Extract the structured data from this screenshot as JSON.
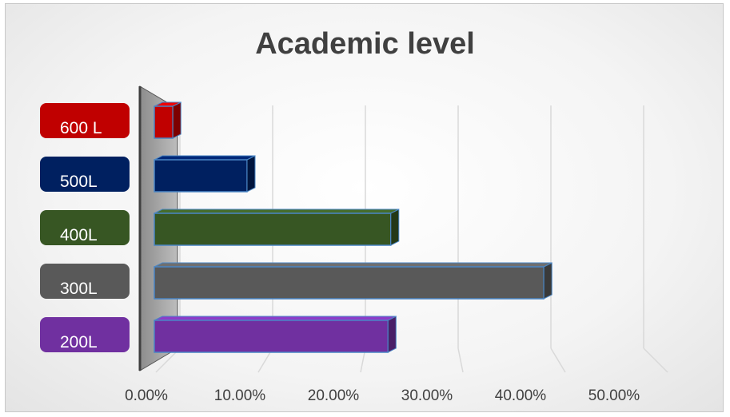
{
  "chart_data": {
    "type": "bar",
    "orientation": "horizontal",
    "title": "Academic level",
    "categories": [
      "600 L",
      "500L",
      "400L",
      "300L",
      "200L"
    ],
    "values": [
      2.0,
      10.0,
      25.5,
      42.0,
      25.2
    ],
    "value_unit": "percent",
    "xlim": [
      0,
      50
    ],
    "x_ticks": [
      "0.00%",
      "10.00%",
      "20.00%",
      "30.00%",
      "40.00%",
      "50.00%"
    ],
    "grid": true,
    "legend": "none",
    "colors": [
      "#c00000",
      "#002060",
      "#375623",
      "#595959",
      "#7030a0"
    ]
  }
}
